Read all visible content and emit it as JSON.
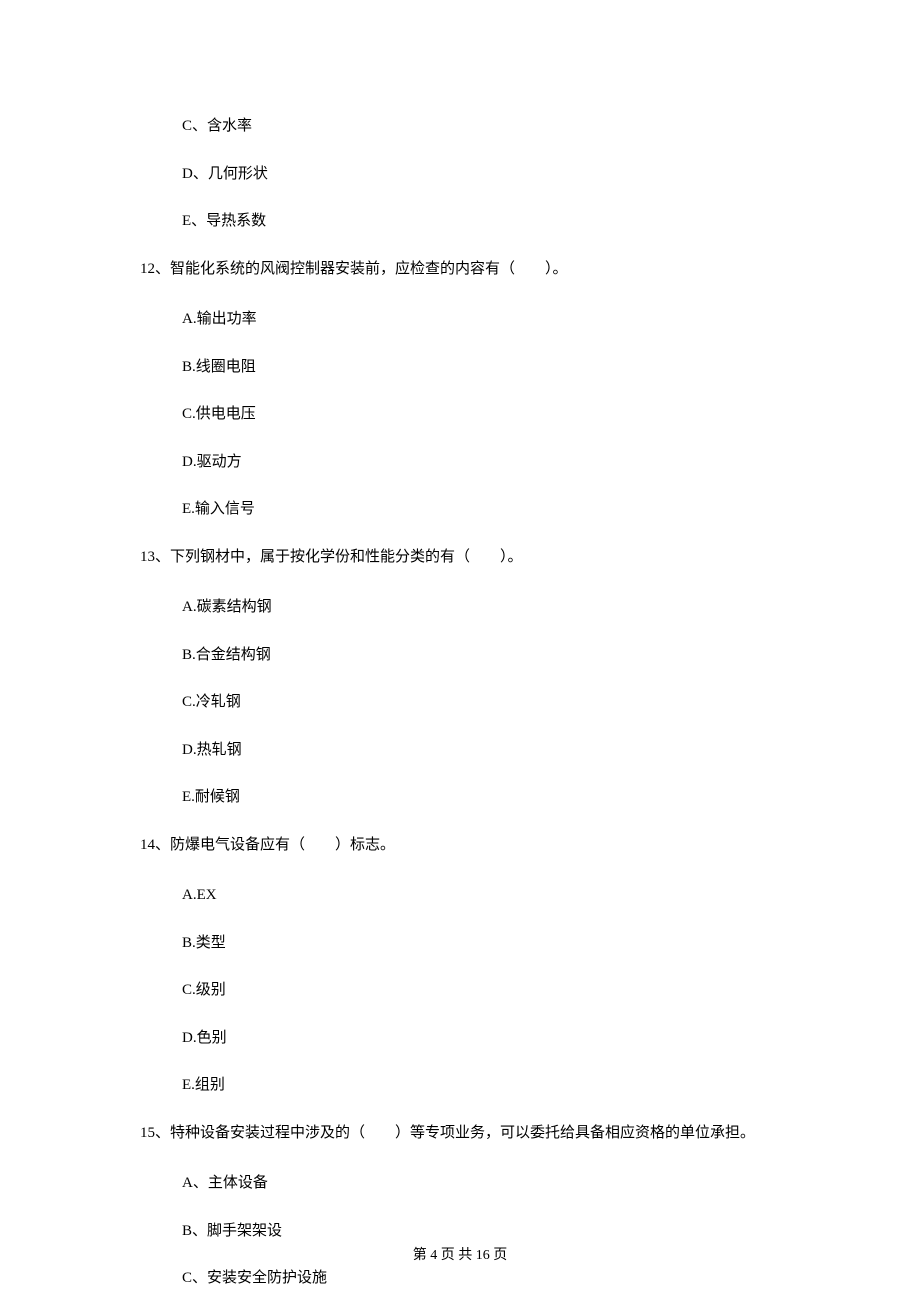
{
  "options_top": [
    "C、含水率",
    "D、几何形状",
    "E、导热系数"
  ],
  "questions": [
    {
      "number": "12",
      "text": "、智能化系统的风阀控制器安装前，应检查的内容有（　　）。",
      "options": [
        "A.输出功率",
        "B.线圈电阻",
        "C.供电电压",
        "D.驱动方",
        "E.输入信号"
      ]
    },
    {
      "number": "13",
      "text": "、下列钢材中，属于按化学份和性能分类的有（　　）。",
      "options": [
        "A.碳素结构钢",
        "B.合金结构钢",
        "C.冷轧钢",
        "D.热轧钢",
        "E.耐候钢"
      ]
    },
    {
      "number": "14",
      "text": "、防爆电气设备应有（　　）标志。",
      "options": [
        "A.EX",
        "B.类型",
        "C.级别",
        "D.色别",
        "E.组别"
      ]
    },
    {
      "number": "15",
      "text": "、特种设备安装过程中涉及的（　　）等专项业务，可以委托给具备相应资格的单位承担。",
      "options": [
        "A、主体设备",
        "B、脚手架架设",
        "C、安装安全防护设施"
      ]
    }
  ],
  "footer": "第 4 页 共 16 页"
}
